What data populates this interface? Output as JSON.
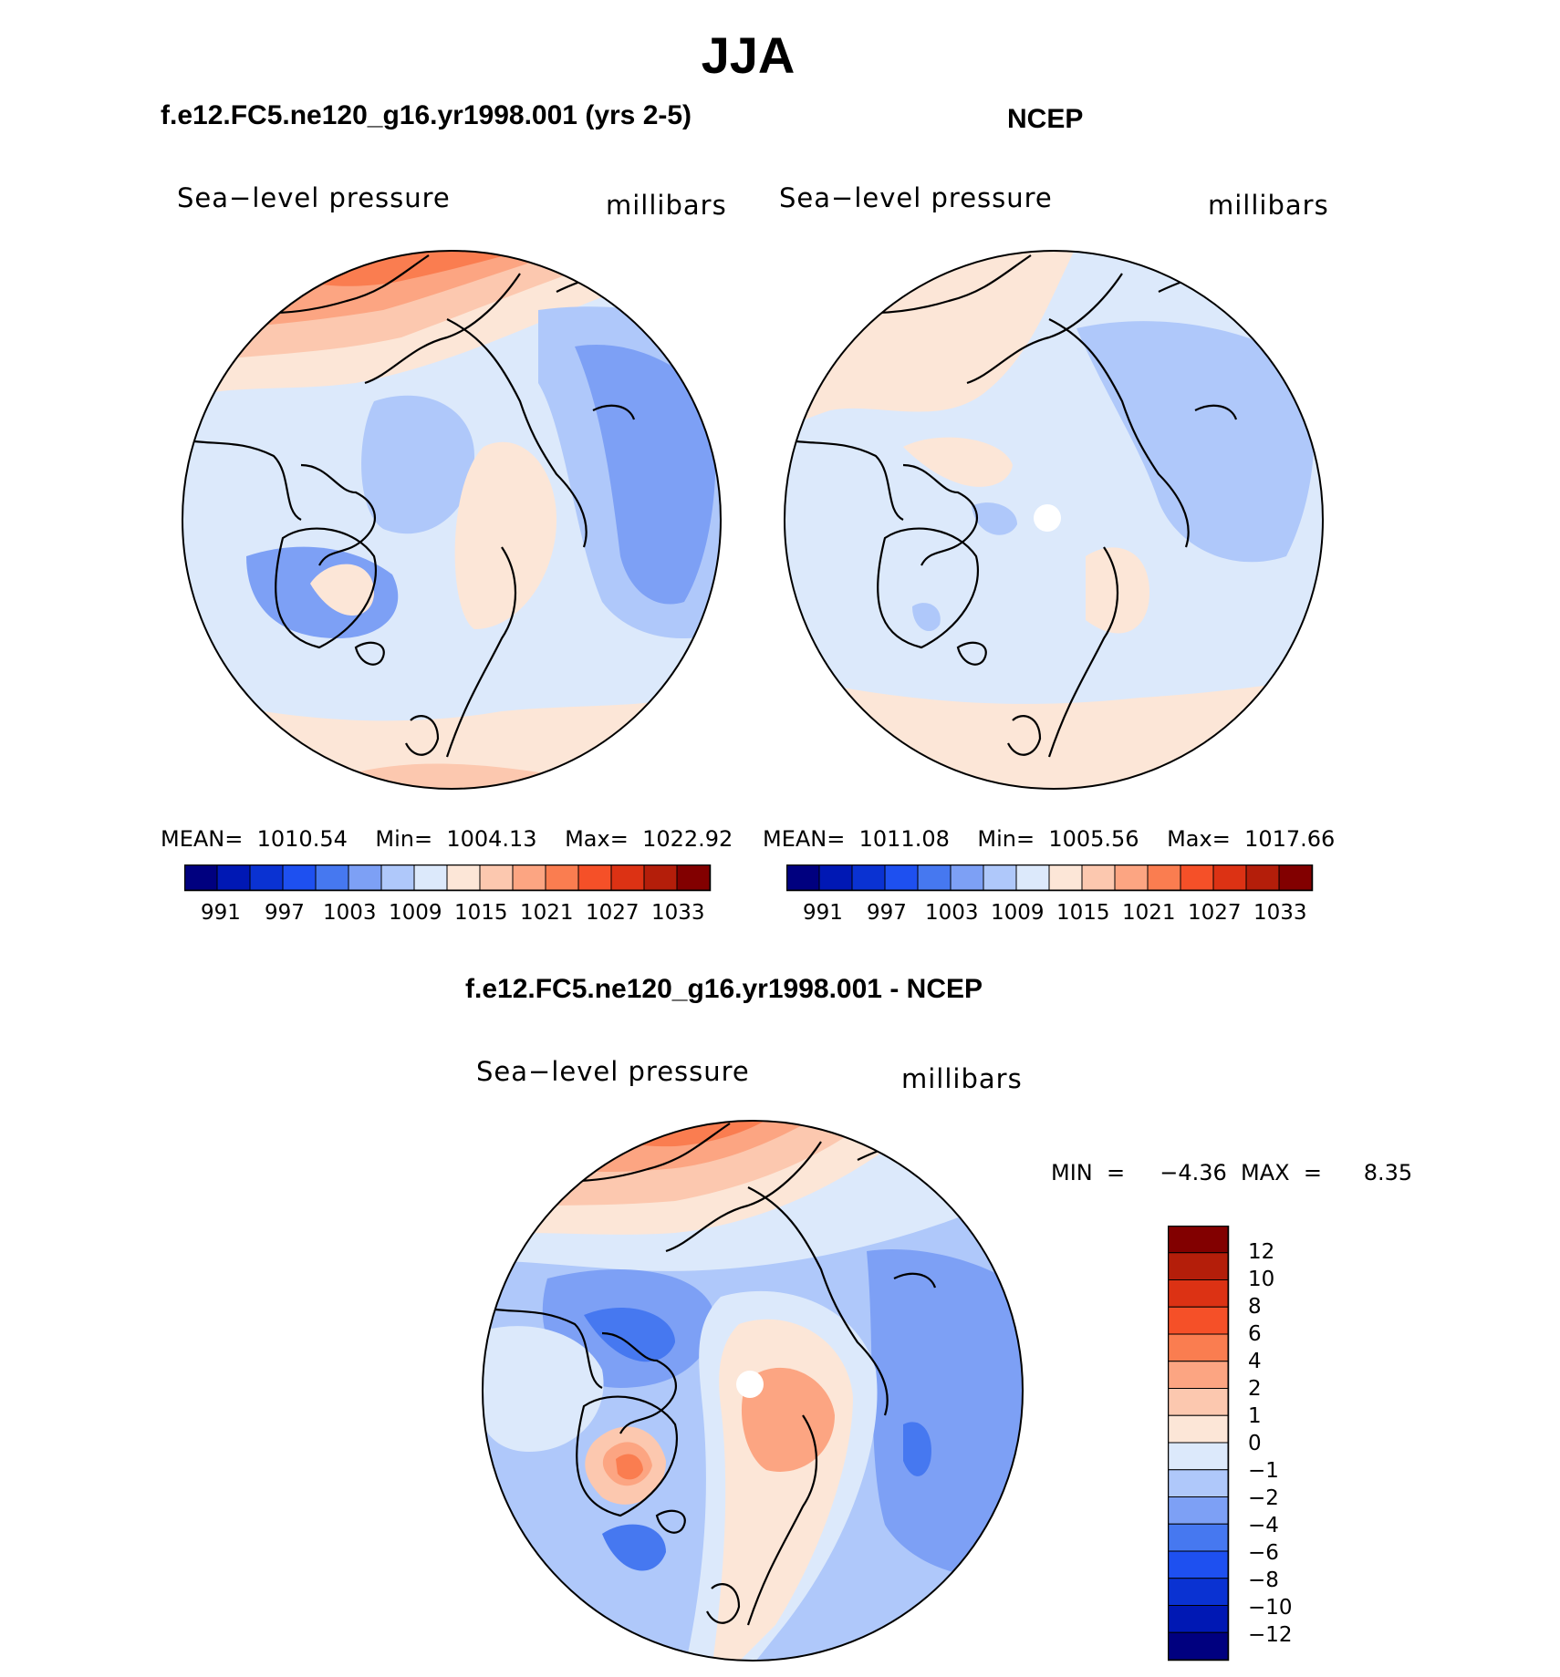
{
  "title": "JJA",
  "panels": [
    {
      "case": "f.e12.FC5.ne120_g16.yr1998.001 (yrs 2-5)",
      "variable": "Sea−level  pressure",
      "units": "millibars",
      "stats": "MEAN=  1010.54    Min=  1004.13    Max=  1022.92",
      "colorbar_labels": [
        "991",
        "997",
        "1003",
        "1009",
        "1015",
        "1021",
        "1027",
        "1033"
      ]
    },
    {
      "case": "NCEP",
      "variable": "Sea−level  pressure",
      "units": "millibars",
      "stats": "MEAN=  1011.08    Min=  1005.56    Max=  1017.66",
      "colorbar_labels": [
        "991",
        "997",
        "1003",
        "1009",
        "1015",
        "1021",
        "1027",
        "1033"
      ]
    },
    {
      "case": "f.e12.FC5.ne120_g16.yr1998.001 - NCEP",
      "variable": "Sea−level  pressure",
      "units": "millibars",
      "stats": "MIN  =     −4.36  MAX  =      8.35",
      "colorbar_labels": [
        "12",
        "10",
        "8",
        "6",
        "4",
        "2",
        "1",
        "0",
        "−1",
        "−2",
        "−4",
        "−6",
        "−8",
        "−10",
        "−12"
      ]
    }
  ],
  "colors": {
    "abs_scale": [
      "#00007f",
      "#0018b4",
      "#0a32d2",
      "#1e50f0",
      "#4678f0",
      "#7da0f5",
      "#afc8fa",
      "#dce9fb",
      "#fce6d7",
      "#fcc8af",
      "#fca582",
      "#fa7d50",
      "#f55028",
      "#dc3214",
      "#b41e0a",
      "#820000"
    ],
    "diff_scale": [
      "#820000",
      "#b41e0a",
      "#dc3214",
      "#f55028",
      "#fa7d50",
      "#fca582",
      "#fcc8af",
      "#fce6d7",
      "#dce9fb",
      "#afc8fa",
      "#7da0f5",
      "#4678f0",
      "#1e50f0",
      "#0a32d2",
      "#0018b4",
      "#00007f"
    ],
    "coast": "#000000"
  }
}
